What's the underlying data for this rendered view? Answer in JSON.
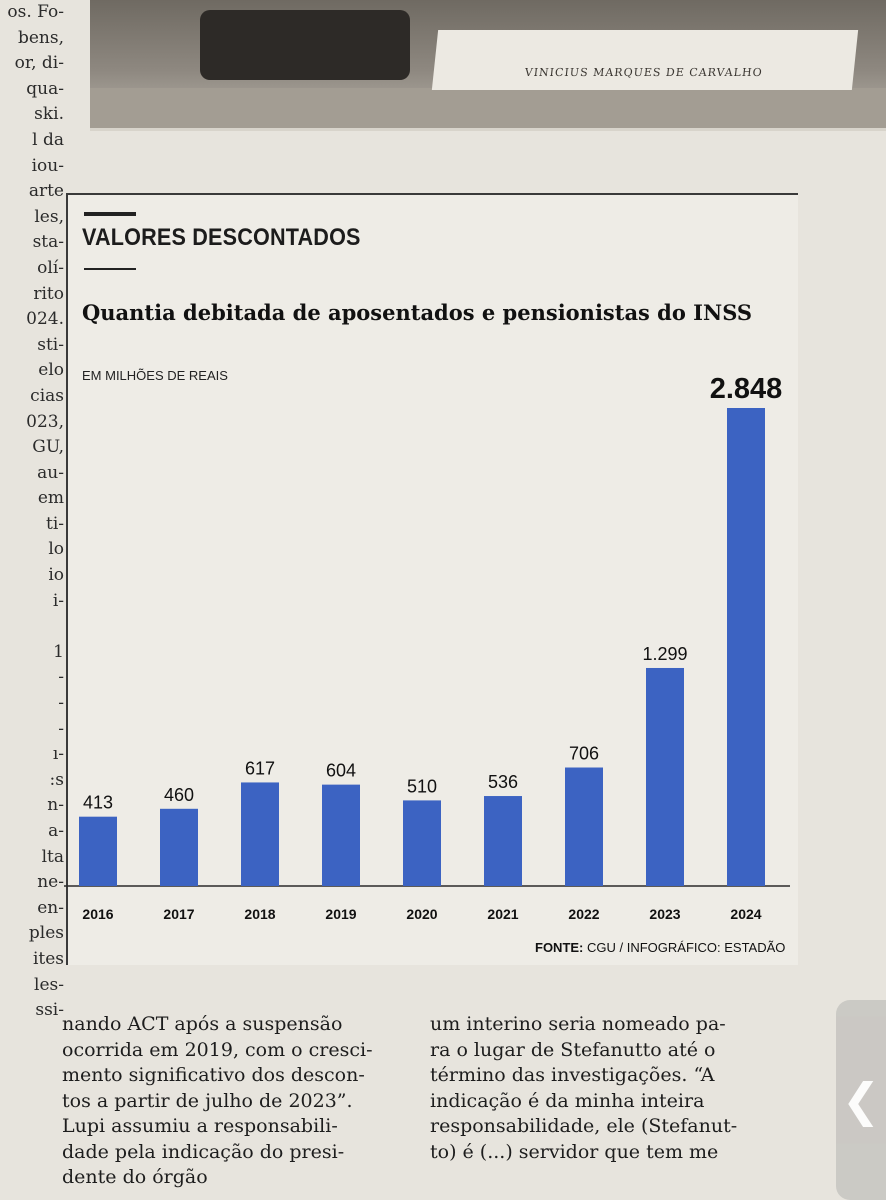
{
  "left_column_lines": [
    "os. Fo-",
    "bens,",
    "or, di-",
    "qua-",
    "ski.",
    "l da",
    "iou-",
    "arte",
    "les,",
    "sta-",
    "olí-",
    "rito",
    "024.",
    "sti-",
    "elo",
    "cias",
    "023,",
    "GU,",
    "au-",
    "em",
    "ti-",
    "lo",
    "io",
    "i-",
    "",
    "1",
    "-",
    "-",
    "-",
    "ı-",
    ":s",
    "n-",
    "a-",
    "lta",
    "ne-",
    "en-",
    "ples",
    "ites",
    "les-",
    "ssi-"
  ],
  "photo": {
    "nameplate_text": "VINICIUS MARQUES DE CARVALHO"
  },
  "infobox": {
    "kicker": "VALORES DESCONTADOS",
    "headline": "Quantia debitada de aposentados e pensionistas do INSS",
    "unit": "EM MILHÕES DE REAIS",
    "source_label": "FONTE:",
    "source_text": " CGU / INFOGRÁFICO: ESTADÃO"
  },
  "chart_data": {
    "type": "bar",
    "title": "Quantia debitada de aposentados e pensionistas do INSS",
    "ylabel": "EM MILHÕES DE REAIS",
    "categories": [
      "2016",
      "2017",
      "2018",
      "2019",
      "2020",
      "2021",
      "2022",
      "2023",
      "2024"
    ],
    "values": [
      413,
      460,
      617,
      604,
      510,
      536,
      706,
      1299,
      2848
    ],
    "value_labels": [
      "413",
      "460",
      "617",
      "604",
      "510",
      "536",
      "706",
      "1.299",
      "2.848"
    ],
    "highlight_index": 8,
    "ylim": [
      0,
      2848
    ],
    "grid": false,
    "bar_color": "#3c63c2"
  },
  "body": {
    "col_a": [
      "nando ACT após a suspensão",
      "ocorrida em 2019, com o cresci-",
      "mento significativo dos descon-",
      "tos a partir de julho de 2023”.",
      "   Lupi assumiu a responsabili-",
      "dade pela indicação do presi-",
      "dente do órgão"
    ],
    "col_b": [
      "um interino seria nomeado pa-",
      "ra o lugar de Stefanutto até o",
      "término das investigações. “A",
      "indicação é da minha inteira",
      "responsabilidade, ele (Stefanut-",
      "to) é (...) servidor que tem me"
    ]
  },
  "ui": {
    "back_icon_glyph": "❮"
  }
}
